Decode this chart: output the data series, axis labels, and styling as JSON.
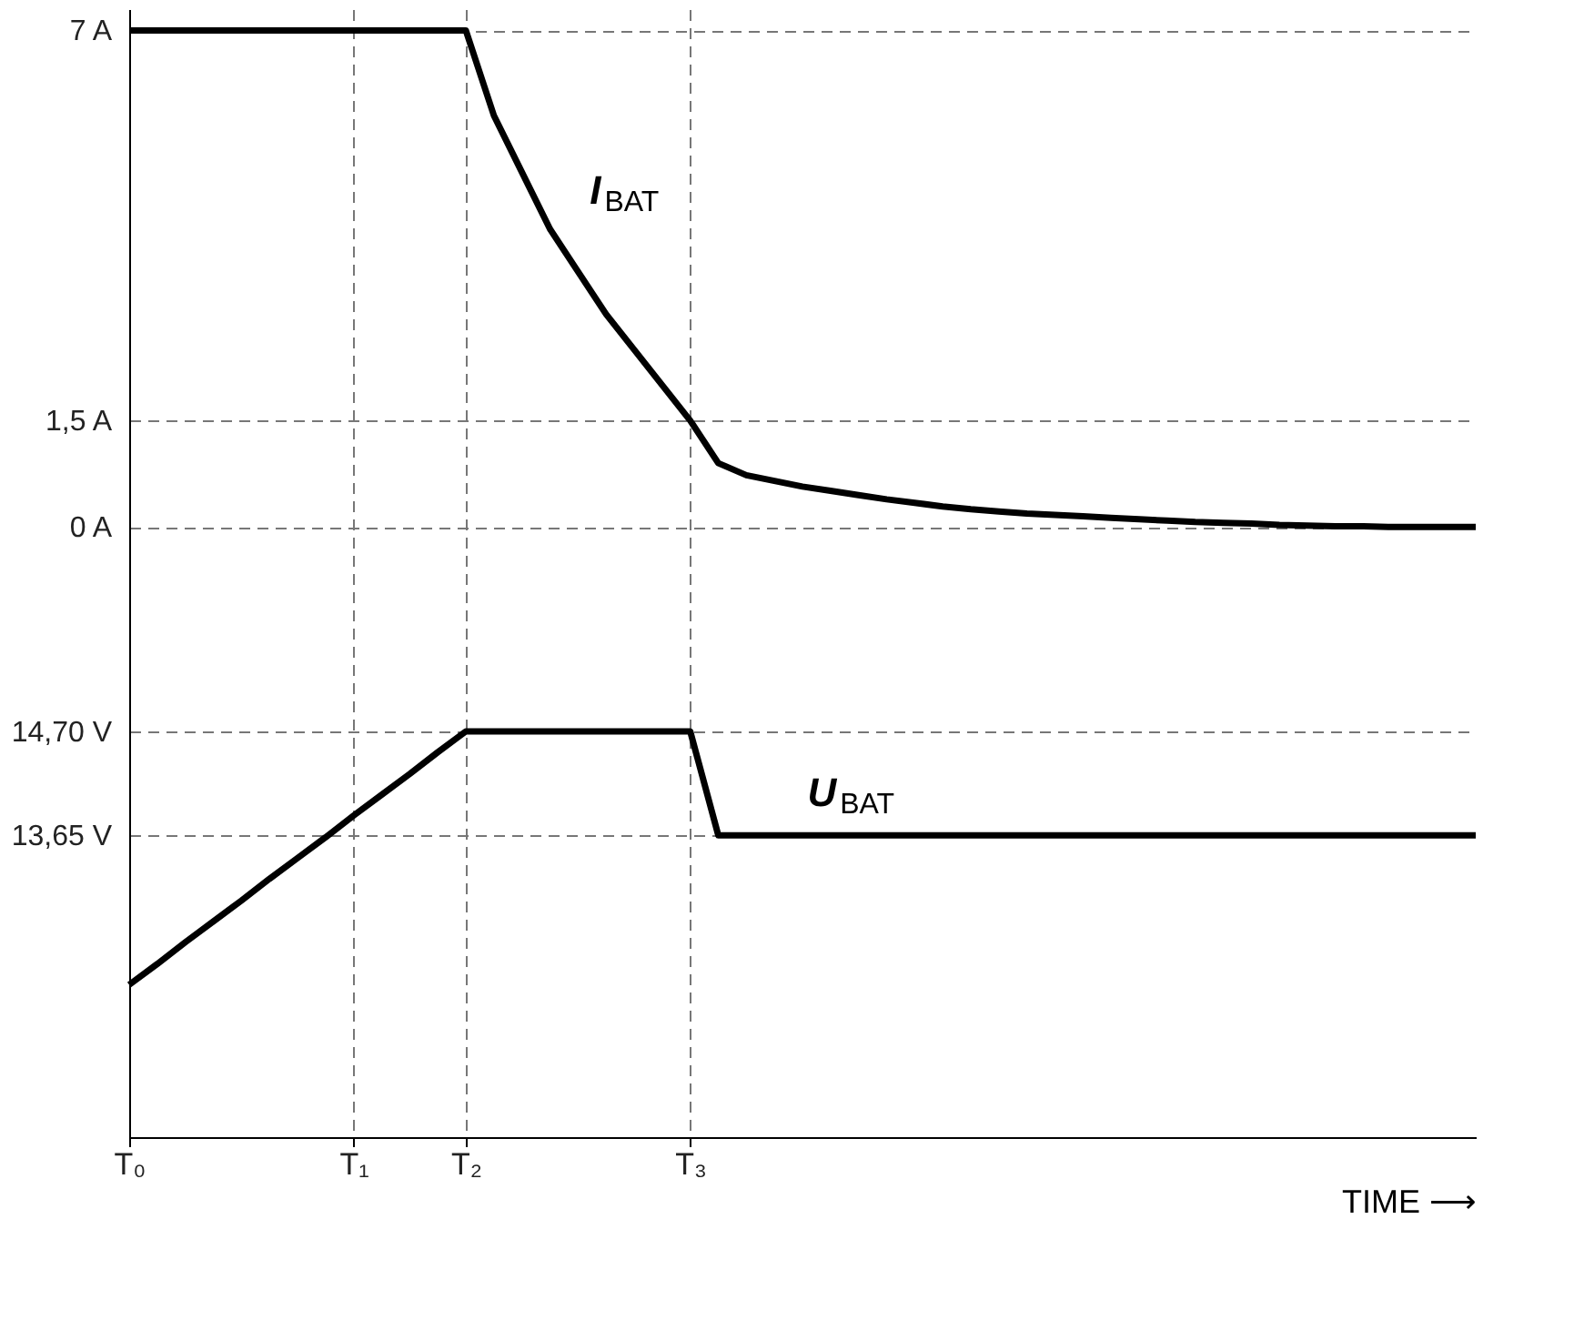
{
  "chart_data": {
    "type": "line",
    "grid": true,
    "line_style": "solid",
    "marker": "none",
    "xlabel": "TIME ⟶",
    "categories": [
      "T₀",
      null,
      null,
      null,
      null,
      null,
      null,
      null,
      "T₁",
      null,
      null,
      null,
      "T₂",
      null,
      null,
      null,
      null,
      null,
      null,
      null,
      "T₃",
      null,
      null,
      null,
      null,
      null,
      null,
      null,
      null,
      null,
      null,
      null,
      null,
      null,
      null,
      null,
      null,
      null,
      null,
      null,
      null,
      null,
      null,
      null,
      null,
      null,
      null,
      null,
      null
    ],
    "ylim": [
      -8.6,
      7.3
    ],
    "yticks": [
      {
        "value": 7,
        "label": "7 A"
      },
      {
        "value": 1.5,
        "label": "1,5 A"
      },
      {
        "value": 0,
        "label": "0 A"
      }
    ],
    "y2lim": [
      10.6,
      22.0
    ],
    "y2ticks": [
      {
        "value": 14.7,
        "label": "14,70 V"
      },
      {
        "value": 13.65,
        "label": "13,65 V"
      }
    ],
    "series": [
      {
        "name": "I$_{BAT}$",
        "color": "#000000",
        "values": [
          7,
          7,
          7,
          7,
          7,
          7,
          7,
          7,
          7,
          7,
          7,
          7,
          7,
          5.8,
          5.0,
          4.2,
          3.6,
          3.0,
          2.5,
          2.0,
          1.5,
          0.9,
          0.73,
          0.65,
          0.57,
          0.51,
          0.45,
          0.39,
          0.34,
          0.29,
          0.25,
          0.22,
          0.19,
          0.17,
          0.15,
          0.13,
          0.11,
          0.09,
          0.07,
          0.06,
          0.05,
          0.03,
          0.02,
          0.01,
          0.01,
          0.0,
          0,
          0,
          0
        ]
      },
      {
        "name": "U$_{BAT}$",
        "color": "#000000",
        "axis": "y2",
        "values": [
          12.14,
          12.35,
          12.57,
          12.78,
          12.99,
          13.21,
          13.42,
          13.63,
          13.85,
          14.06,
          14.27,
          14.49,
          14.7,
          14.7,
          14.7,
          14.7,
          14.7,
          14.7,
          14.7,
          14.7,
          14.7,
          13.65,
          13.65,
          13.65,
          13.65,
          13.65,
          13.65,
          13.65,
          13.65,
          13.65,
          13.65,
          13.65,
          13.65,
          13.65,
          13.65,
          13.65,
          13.65,
          13.65,
          13.65,
          13.65,
          13.65,
          13.65,
          13.65,
          13.65,
          13.65,
          13.65,
          13.65,
          13.65,
          13.65
        ]
      }
    ]
  }
}
